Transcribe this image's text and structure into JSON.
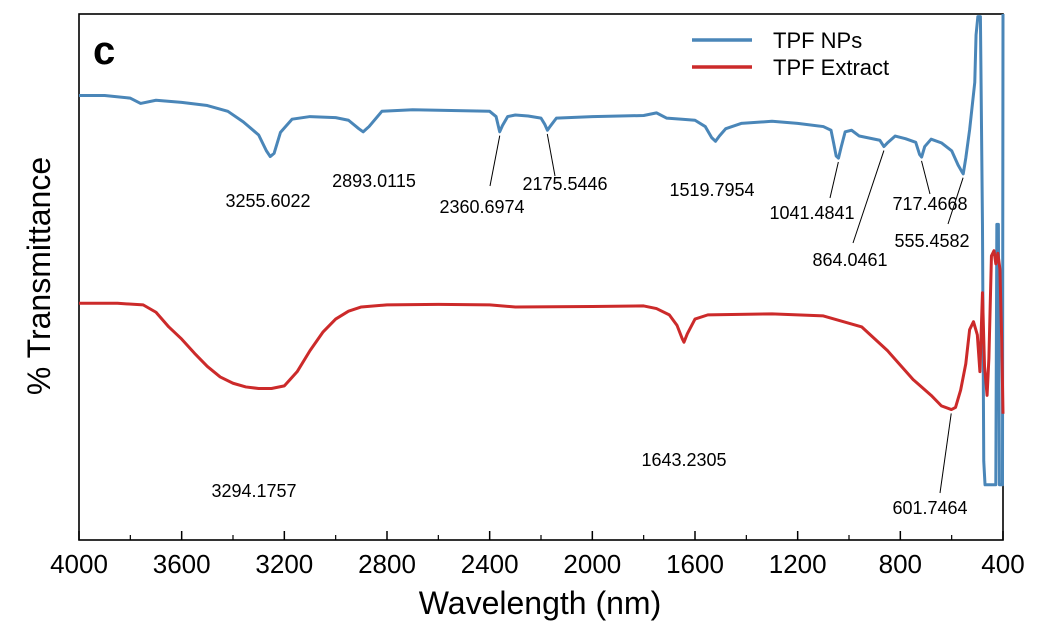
{
  "chart_data": {
    "type": "line",
    "panel_label": "c",
    "xlabel": "Wavelength (nm)",
    "ylabel": "% Transmittance",
    "xlim": [
      4000,
      400
    ],
    "x_ticks": [
      "4000",
      "3600",
      "3200",
      "2800",
      "2400",
      "2000",
      "1600",
      "1200",
      "800",
      "400"
    ],
    "grid": false,
    "legend_position": "top-right",
    "y_units": "relative transmittance (arbitrary, no tick labels)",
    "series": [
      {
        "name": "TPF NPs",
        "color": "#4a86b8",
        "points": [
          [
            4000,
            84.5
          ],
          [
            3900,
            84.5
          ],
          [
            3800,
            84.0
          ],
          [
            3760,
            83.0
          ],
          [
            3700,
            83.6
          ],
          [
            3600,
            83.2
          ],
          [
            3500,
            82.6
          ],
          [
            3420,
            81.5
          ],
          [
            3360,
            79.5
          ],
          [
            3300,
            77.0
          ],
          [
            3270,
            74.0
          ],
          [
            3255,
            72.9
          ],
          [
            3240,
            73.5
          ],
          [
            3215,
            77.5
          ],
          [
            3170,
            80.0
          ],
          [
            3100,
            80.5
          ],
          [
            3000,
            80.3
          ],
          [
            2950,
            79.8
          ],
          [
            2910,
            78.2
          ],
          [
            2893,
            77.6
          ],
          [
            2870,
            78.6
          ],
          [
            2820,
            81.5
          ],
          [
            2700,
            81.8
          ],
          [
            2500,
            81.6
          ],
          [
            2400,
            81.5
          ],
          [
            2375,
            80.5
          ],
          [
            2361,
            77.6
          ],
          [
            2350,
            78.8
          ],
          [
            2330,
            80.5
          ],
          [
            2300,
            80.8
          ],
          [
            2250,
            80.6
          ],
          [
            2200,
            80.2
          ],
          [
            2185,
            79.0
          ],
          [
            2175,
            77.9
          ],
          [
            2165,
            78.6
          ],
          [
            2140,
            80.2
          ],
          [
            2000,
            80.5
          ],
          [
            1800,
            80.7
          ],
          [
            1750,
            81.2
          ],
          [
            1710,
            80.2
          ],
          [
            1650,
            80.0
          ],
          [
            1600,
            79.8
          ],
          [
            1560,
            78.6
          ],
          [
            1535,
            76.5
          ],
          [
            1520,
            75.8
          ],
          [
            1505,
            76.8
          ],
          [
            1480,
            78.2
          ],
          [
            1420,
            79.2
          ],
          [
            1300,
            79.6
          ],
          [
            1200,
            79.2
          ],
          [
            1100,
            78.6
          ],
          [
            1070,
            77.9
          ],
          [
            1060,
            75.5
          ],
          [
            1050,
            73.0
          ],
          [
            1041,
            72.6
          ],
          [
            1030,
            74.8
          ],
          [
            1015,
            77.6
          ],
          [
            990,
            77.9
          ],
          [
            960,
            76.8
          ],
          [
            920,
            76.4
          ],
          [
            880,
            76.0
          ],
          [
            864,
            74.8
          ],
          [
            848,
            75.6
          ],
          [
            820,
            76.8
          ],
          [
            780,
            76.3
          ],
          [
            740,
            75.6
          ],
          [
            725,
            73.3
          ],
          [
            717,
            72.8
          ],
          [
            705,
            74.8
          ],
          [
            680,
            76.2
          ],
          [
            640,
            75.5
          ],
          [
            600,
            74.0
          ],
          [
            575,
            71.3
          ],
          [
            560,
            70.0
          ],
          [
            555,
            69.6
          ],
          [
            545,
            72.6
          ],
          [
            530,
            78.0
          ],
          [
            510,
            87.0
          ],
          [
            505,
            96.0
          ],
          [
            498,
            99.5
          ],
          [
            488,
            99.5
          ],
          [
            480,
            60.0
          ],
          [
            475,
            15.0
          ],
          [
            470,
            10.5
          ],
          [
            440,
            10.5
          ],
          [
            428,
            10.5
          ],
          [
            424,
            60.0
          ],
          [
            418,
            60.0
          ],
          [
            414,
            10.5
          ],
          [
            402,
            10.5
          ],
          [
            400,
            100.0
          ]
        ]
      },
      {
        "name": "TPF Extract",
        "color": "#cc2a2a",
        "points": [
          [
            4000,
            45.0
          ],
          [
            3850,
            45.0
          ],
          [
            3750,
            44.7
          ],
          [
            3700,
            43.3
          ],
          [
            3650,
            40.5
          ],
          [
            3600,
            38.2
          ],
          [
            3550,
            35.5
          ],
          [
            3500,
            33.0
          ],
          [
            3450,
            31.0
          ],
          [
            3400,
            29.8
          ],
          [
            3350,
            29.1
          ],
          [
            3300,
            28.8
          ],
          [
            3250,
            28.8
          ],
          [
            3200,
            29.3
          ],
          [
            3150,
            32.0
          ],
          [
            3100,
            36.0
          ],
          [
            3050,
            39.5
          ],
          [
            3000,
            42.0
          ],
          [
            2950,
            43.5
          ],
          [
            2900,
            44.3
          ],
          [
            2800,
            44.7
          ],
          [
            2600,
            44.8
          ],
          [
            2400,
            44.7
          ],
          [
            2300,
            44.3
          ],
          [
            2000,
            44.4
          ],
          [
            1800,
            44.5
          ],
          [
            1750,
            44.0
          ],
          [
            1700,
            42.8
          ],
          [
            1670,
            40.8
          ],
          [
            1650,
            38.3
          ],
          [
            1643,
            37.6
          ],
          [
            1630,
            39.2
          ],
          [
            1600,
            42.0
          ],
          [
            1550,
            42.8
          ],
          [
            1300,
            43.0
          ],
          [
            1100,
            42.6
          ],
          [
            950,
            40.5
          ],
          [
            850,
            36.0
          ],
          [
            750,
            30.5
          ],
          [
            680,
            27.5
          ],
          [
            640,
            25.5
          ],
          [
            601,
            24.8
          ],
          [
            585,
            25.2
          ],
          [
            565,
            28.5
          ],
          [
            545,
            33.5
          ],
          [
            530,
            40.0
          ],
          [
            515,
            41.5
          ],
          [
            500,
            39.0
          ],
          [
            490,
            32.0
          ],
          [
            480,
            47.0
          ],
          [
            472,
            33.0
          ],
          [
            462,
            27.5
          ],
          [
            455,
            34.5
          ],
          [
            445,
            54.0
          ],
          [
            435,
            55.0
          ],
          [
            428,
            52.5
          ],
          [
            420,
            54.5
          ],
          [
            412,
            51.5
          ],
          [
            405,
            38.0
          ],
          [
            400,
            24.0
          ]
        ]
      }
    ],
    "annotations": [
      {
        "text": "3255.6022",
        "series": "TPF NPs",
        "x": 3255.6022
      },
      {
        "text": "2893.0115",
        "series": "TPF NPs",
        "x": 2893.0115
      },
      {
        "text": "2360.6974",
        "series": "TPF NPs",
        "x": 2360.6974
      },
      {
        "text": "2175.5446",
        "series": "TPF NPs",
        "x": 2175.5446
      },
      {
        "text": "1519.7954",
        "series": "TPF NPs",
        "x": 1519.7954
      },
      {
        "text": "1041.4841",
        "series": "TPF NPs",
        "x": 1041.4841
      },
      {
        "text": "864.0461",
        "series": "TPF NPs",
        "x": 864.0461
      },
      {
        "text": "717.4668",
        "series": "TPF NPs",
        "x": 717.4668
      },
      {
        "text": "555.4582",
        "series": "TPF NPs",
        "x": 555.4582
      },
      {
        "text": "3294.1757",
        "series": "TPF Extract",
        "x": 3294.1757
      },
      {
        "text": "1643.2305",
        "series": "TPF Extract",
        "x": 1643.2305
      },
      {
        "text": "601.7464",
        "series": "TPF Extract",
        "x": 601.7464
      }
    ]
  }
}
